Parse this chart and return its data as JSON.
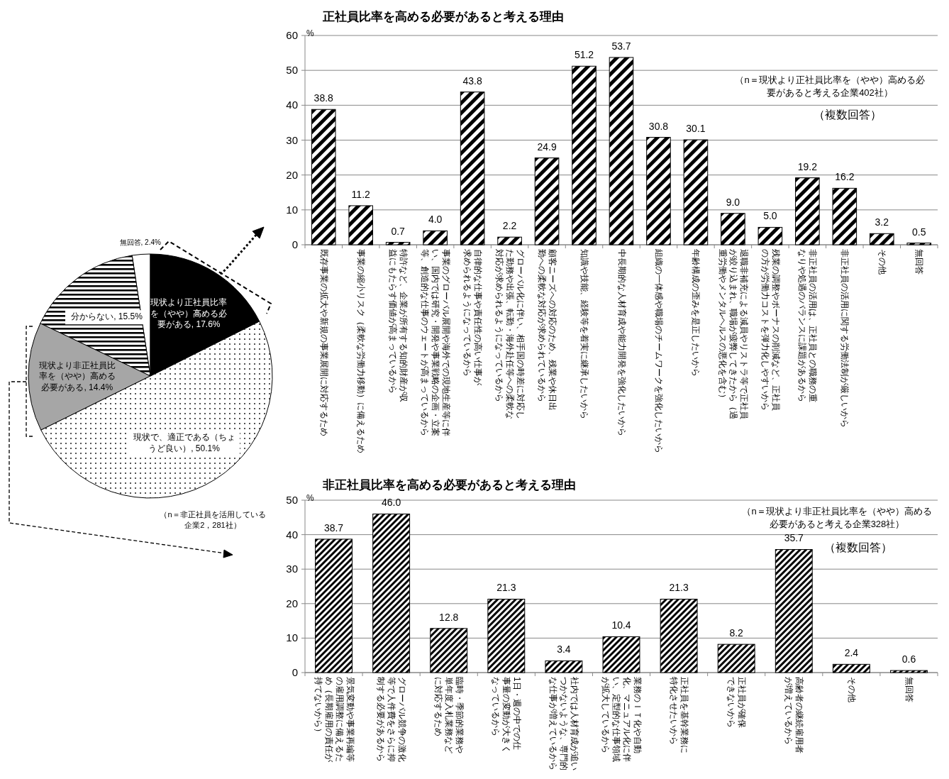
{
  "chart_data": [
    {
      "type": "pie",
      "categories": [
        "無回答",
        "分からない",
        "現状より非正社員比率を（やや）高める必要がある",
        "現状で、適正である（ちょうど良い）",
        "現状より正社員比率を（やや）高める必要がある"
      ],
      "values": [
        2.4,
        15.5,
        14.4,
        50.1,
        17.6
      ],
      "value_labels": [
        "2.4%",
        "15.5%",
        "14.4%",
        "50.1%",
        "17.6%"
      ],
      "colors": [
        "#ffffff",
        "#000000",
        "#a6a6a6",
        "#000000",
        "#000000"
      ],
      "annotations": [
        "（n＝非正社員を活用している企業2，281社）"
      ]
    },
    {
      "type": "bar",
      "title": "正社員比率を高める必要があると考える理由",
      "ylabel": "%",
      "categories": [
        "既存事業の拡大や新規の事業展開に対応するため",
        "事業の縮小リスク（柔軟な労働力移動）に備えるため",
        "特許など、企業が所有する知的財産が収益にもたらす価値が高まっているから",
        "事業のグローバル展開や海外での現地生産等に伴い、国内では研究・開発や事業戦略の企画・立案等、創造的な仕事のウェートが高まっているから",
        "自律的な仕事や責任性の高い仕事が求められるようになっているから",
        "グローバル化に伴い、相手国の時差に対応した勤務や出張、転勤・海外赴任等への柔軟な対応が求められるようになっているから",
        "顧客ニーズへの対応のため、残業や休日出勤への柔軟な対応が求められているから",
        "知識や技能、経験等を着実に継承したいから",
        "中長期的な人材育成や能力開発を強化したいから",
        "組織の一体感や職場のチームワークを強化したいから",
        "年齢構成の歪みを是正したいから",
        "退職非補充による減員やリストラ等で正社員が絞り込まれ、職場が疲弊してきたから（過重労働やメンタルヘルスの悪化を含む）",
        "残業の調整やボーナスの削減など、正社員の方が労働力コストを弾力化しやすいから",
        "非正社員の活用は、正社員との職務の重なりや処遇のバランスに課題があるから",
        "非正社員の活用に関する労働法制が厳しいから",
        "その他",
        "無回答"
      ],
      "values": [
        38.8,
        11.2,
        0.7,
        4.0,
        43.8,
        2.2,
        24.9,
        51.2,
        53.7,
        30.8,
        30.1,
        9.0,
        5.0,
        19.2,
        16.2,
        3.2,
        0.5
      ],
      "value_labels": [
        "38.8",
        "11.2",
        "0.7",
        "4.0",
        "43.8",
        "2.2",
        "24.9",
        "51.2",
        "53.7",
        "30.8",
        "30.1",
        "9.0",
        "5.0",
        "19.2",
        "16.2",
        "3.2",
        "0.5"
      ],
      "color": "#000000",
      "ylim": [
        0,
        60
      ],
      "yticks": [
        0,
        10,
        20,
        30,
        40,
        50,
        60
      ],
      "grid": "y",
      "annotations": [
        "（n＝現状より正社員比率を（やや）高める必要があると考える企業402社）",
        "（複数回答）"
      ]
    },
    {
      "type": "bar",
      "title": "非正社員比率を高める必要があると考える理由",
      "ylabel": "%",
      "categories": [
        "景気変動や事業再編等の雇用調整に備えるため（長期雇用の責任が持てないから）",
        "グローバル競争の激化等で人件費をさらに抑制する必要があるから",
        "臨時・季節的業務や単年度入札業務などに対応するため",
        "1日・週の中での仕事量の変動が大きくなっているから",
        "社内では人材育成が追いつかないような、専門的な仕事が増えているから",
        "業務のＩＴ化や自動化、マニュアル化に伴い、定型的な仕事領域が拡大しているから",
        "正社員を基幹業務に特化させたいから",
        "正社員が確保できないから",
        "高齢者の継続雇用者が増えているから",
        "その他",
        "無回答"
      ],
      "values": [
        38.7,
        46.0,
        12.8,
        21.3,
        3.4,
        10.4,
        21.3,
        8.2,
        35.7,
        2.4,
        0.6
      ],
      "value_labels": [
        "38.7",
        "46.0",
        "12.8",
        "21.3",
        "3.4",
        "10.4",
        "21.3",
        "8.2",
        "35.7",
        "2.4",
        "0.6"
      ],
      "color": "#000000",
      "ylim": [
        0,
        50
      ],
      "yticks": [
        0,
        10,
        20,
        30,
        40,
        50
      ],
      "grid": "y",
      "annotations": [
        "（n＝現状より非正社員比率を（やや）高める必要があると考える企業328社）",
        "（複数回答）"
      ]
    }
  ]
}
